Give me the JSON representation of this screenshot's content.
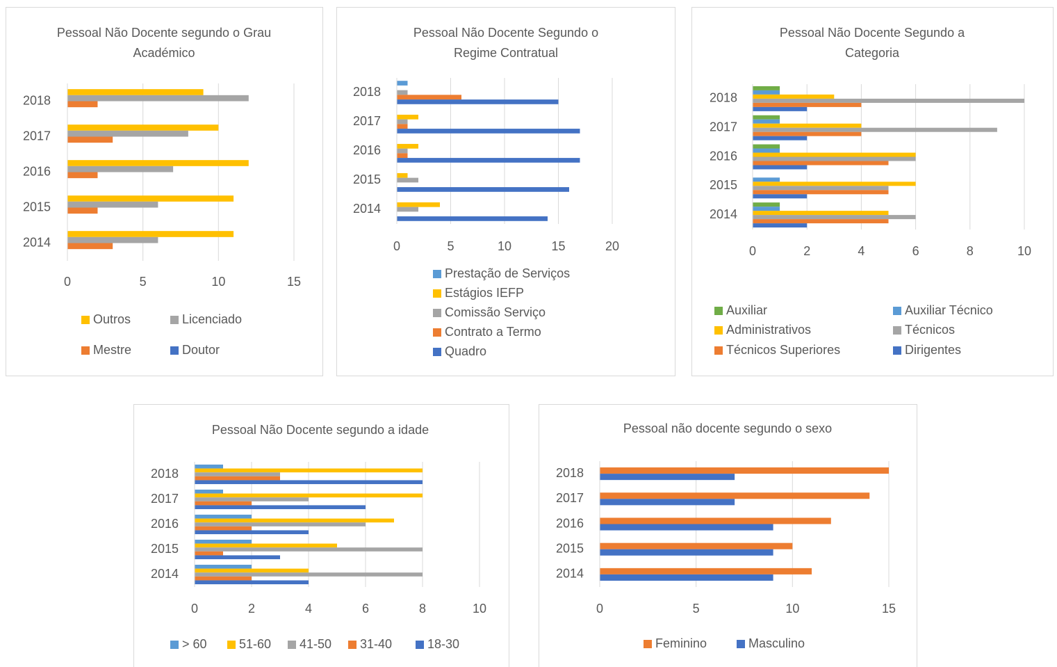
{
  "chart_data": [
    {
      "type": "bar",
      "orientation": "horizontal",
      "title": "Pessoal Não Docente segundo o Grau Académico",
      "categories": [
        "2014",
        "2015",
        "2016",
        "2017",
        "2018"
      ],
      "series": [
        {
          "name": "Outros",
          "color": "#ffc000",
          "values": [
            11,
            11,
            12,
            10,
            9
          ]
        },
        {
          "name": "Licenciado",
          "color": "#a5a5a5",
          "values": [
            6,
            6,
            7,
            8,
            12
          ]
        },
        {
          "name": "Mestre",
          "color": "#ed7d31",
          "values": [
            3,
            2,
            2,
            3,
            2
          ]
        },
        {
          "name": "Doutor",
          "color": "#4472c4",
          "values": [
            0,
            0,
            0,
            0,
            0
          ]
        }
      ],
      "xlim": [
        0,
        15
      ],
      "xticks": [
        0,
        5,
        10,
        15
      ],
      "grid": true
    },
    {
      "type": "bar",
      "orientation": "horizontal",
      "title": "Pessoal Não Docente Segundo o Regime Contratual",
      "categories": [
        "2014",
        "2015",
        "2016",
        "2017",
        "2018"
      ],
      "series": [
        {
          "name": "Prestação de Serviços",
          "color": "#5b9bd5",
          "values": [
            0,
            0,
            0,
            0,
            1
          ]
        },
        {
          "name": "Estágios IEFP",
          "color": "#ffc000",
          "values": [
            4,
            1,
            2,
            2,
            0
          ]
        },
        {
          "name": "Comissão Serviço",
          "color": "#a5a5a5",
          "values": [
            2,
            2,
            1,
            1,
            1
          ]
        },
        {
          "name": "Contrato a Termo",
          "color": "#ed7d31",
          "values": [
            0,
            0,
            1,
            1,
            6
          ]
        },
        {
          "name": "Quadro",
          "color": "#4472c4",
          "values": [
            14,
            16,
            17,
            17,
            15
          ]
        }
      ],
      "xlim": [
        0,
        20
      ],
      "xticks": [
        0,
        5,
        10,
        15,
        20
      ],
      "grid": true
    },
    {
      "type": "bar",
      "orientation": "horizontal",
      "title": "Pessoal Não Docente Segundo a Categoria",
      "categories": [
        "2014",
        "2015",
        "2016",
        "2017",
        "2018"
      ],
      "series": [
        {
          "name": "Auxiliar",
          "color": "#70ad47",
          "values": [
            1,
            0,
            1,
            1,
            1
          ]
        },
        {
          "name": "Auxiliar Técnico",
          "color": "#5b9bd5",
          "values": [
            1,
            1,
            1,
            1,
            1
          ]
        },
        {
          "name": "Administrativos",
          "color": "#ffc000",
          "values": [
            5,
            6,
            6,
            4,
            3
          ]
        },
        {
          "name": "Técnicos",
          "color": "#a5a5a5",
          "values": [
            6,
            5,
            6,
            9,
            10
          ]
        },
        {
          "name": "Técnicos Superiores",
          "color": "#ed7d31",
          "values": [
            5,
            5,
            5,
            4,
            4
          ]
        },
        {
          "name": "Dirigentes",
          "color": "#4472c4",
          "values": [
            2,
            2,
            2,
            2,
            2
          ]
        }
      ],
      "xlim": [
        0,
        10
      ],
      "xticks": [
        0,
        2,
        4,
        6,
        8,
        10
      ],
      "grid": true
    },
    {
      "type": "bar",
      "orientation": "horizontal",
      "title": "Pessoal Não Docente segundo a idade",
      "categories": [
        "2014",
        "2015",
        "2016",
        "2017",
        "2018"
      ],
      "series": [
        {
          "name": "> 60",
          "color": "#5b9bd5",
          "values": [
            2,
            2,
            2,
            1,
            1
          ]
        },
        {
          "name": "51-60",
          "color": "#ffc000",
          "values": [
            4,
            5,
            7,
            8,
            8
          ]
        },
        {
          "name": "41-50",
          "color": "#a5a5a5",
          "values": [
            8,
            8,
            6,
            4,
            3
          ]
        },
        {
          "name": "31-40",
          "color": "#ed7d31",
          "values": [
            2,
            1,
            2,
            2,
            3
          ]
        },
        {
          "name": "18-30",
          "color": "#4472c4",
          "values": [
            4,
            3,
            4,
            6,
            8
          ]
        }
      ],
      "xlim": [
        0,
        10
      ],
      "xticks": [
        0,
        2,
        4,
        6,
        8,
        10
      ],
      "grid": true
    },
    {
      "type": "bar",
      "orientation": "horizontal",
      "title": "Pessoal não docente segundo o sexo",
      "categories": [
        "2014",
        "2015",
        "2016",
        "2017",
        "2018"
      ],
      "series": [
        {
          "name": "Feminino",
          "color": "#ed7d31",
          "values": [
            11,
            10,
            12,
            14,
            15
          ]
        },
        {
          "name": "Masculino",
          "color": "#4472c4",
          "values": [
            9,
            9,
            9,
            7,
            7
          ]
        }
      ],
      "xlim": [
        0,
        15
      ],
      "xticks": [
        0,
        5,
        10,
        15
      ],
      "grid": true
    }
  ]
}
